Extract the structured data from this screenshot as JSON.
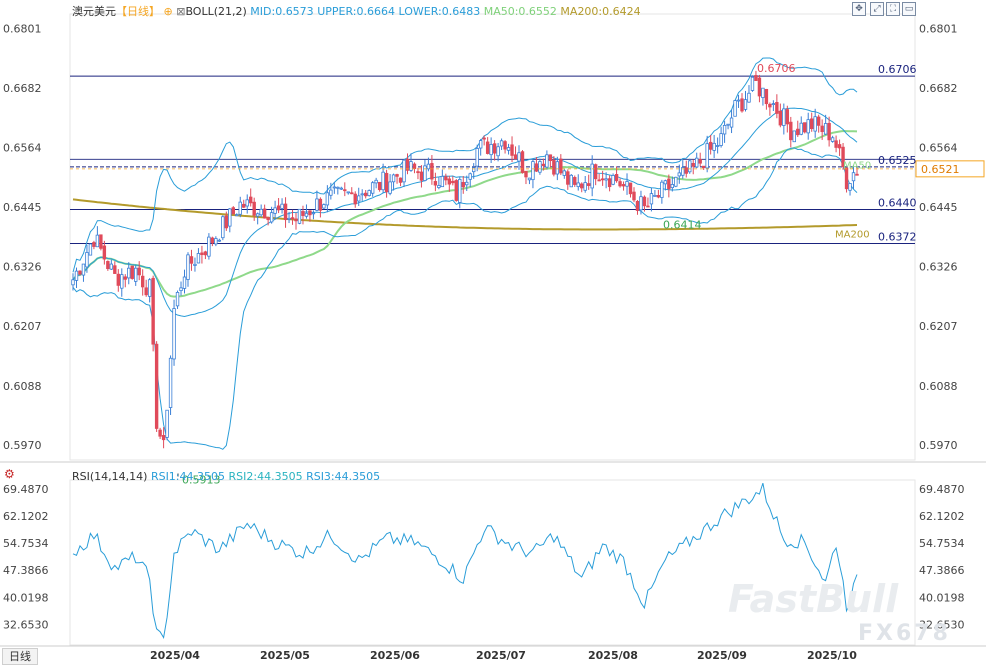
{
  "header": {
    "symbol": "澳元美元",
    "period": "【日线】",
    "indicator": "BOLL(21,2)",
    "mid": "MID:0.6573",
    "upper": "UPPER:0.6664",
    "lower": "LOWER:0.6483",
    "ma50": "MA50:0.6552",
    "ma200": "MA200:0.6424"
  },
  "rsi_header": {
    "name": "RSI(14,14,14)",
    "rsi1": "RSI1:44.3505",
    "rsi2": "RSI2:44.3505",
    "rsi3": "RSI3:44.3505"
  },
  "period_tag": "日线",
  "watermark": "FastBull",
  "watermark2": "FX678",
  "colors": {
    "up": "#3a7fd6",
    "down": "#e04a5a",
    "boll": "#2a9dd8",
    "ma50": "#8fd98a",
    "ma200": "#b39a2b",
    "hline": "#1a237e",
    "tag_price": "#f5a623",
    "low_label": "#3aa655",
    "high_label": "#e04a5a"
  },
  "chart_data": [
    {
      "type": "candlestick",
      "title": "澳元美元 日线",
      "y_ticks": [
        "0.6801",
        "0.6682",
        "0.6564",
        "0.6445",
        "0.6326",
        "0.6207",
        "0.6088",
        "0.5970"
      ],
      "ylim": [
        0.594,
        0.683
      ],
      "x_ticks": [
        "2025/04",
        "2025/05",
        "2025/06",
        "2025/07",
        "2025/08",
        "2025/09",
        "2025/10"
      ],
      "horizontal_lines": [
        {
          "label": "0.6706",
          "value": 0.6706
        },
        {
          "label": "0.6525",
          "value": 0.6525
        },
        {
          "label": "0.6440",
          "value": 0.644
        },
        {
          "label": "0.6372",
          "value": 0.6372
        }
      ],
      "current_price": "0.6521",
      "annotations": {
        "high": "0.6706",
        "low": "0.5913",
        "swing_low": "0.6414",
        "ma50_label": "MA50",
        "ma200_label": "MA200"
      },
      "anchors": [
        {
          "i": 0,
          "c": 0.63
        },
        {
          "i": 6,
          "c": 0.6385
        },
        {
          "i": 12,
          "c": 0.6305
        },
        {
          "i": 18,
          "c": 0.632
        },
        {
          "i": 22,
          "c": 0.628
        },
        {
          "i": 24,
          "c": 0.602
        },
        {
          "i": 26,
          "c": 0.596
        },
        {
          "i": 29,
          "c": 0.624
        },
        {
          "i": 32,
          "c": 0.632
        },
        {
          "i": 40,
          "c": 0.638
        },
        {
          "i": 48,
          "c": 0.645
        },
        {
          "i": 56,
          "c": 0.644
        },
        {
          "i": 64,
          "c": 0.642
        },
        {
          "i": 72,
          "c": 0.646
        },
        {
          "i": 80,
          "c": 0.647
        },
        {
          "i": 88,
          "c": 0.649
        },
        {
          "i": 96,
          "c": 0.652
        },
        {
          "i": 104,
          "c": 0.651
        },
        {
          "i": 110,
          "c": 0.647
        },
        {
          "i": 116,
          "c": 0.656
        },
        {
          "i": 124,
          "c": 0.658
        },
        {
          "i": 130,
          "c": 0.652
        },
        {
          "i": 136,
          "c": 0.655
        },
        {
          "i": 144,
          "c": 0.648
        },
        {
          "i": 150,
          "c": 0.652
        },
        {
          "i": 156,
          "c": 0.65
        },
        {
          "i": 164,
          "c": 0.644
        },
        {
          "i": 170,
          "c": 0.648
        },
        {
          "i": 178,
          "c": 0.652
        },
        {
          "i": 186,
          "c": 0.658
        },
        {
          "i": 190,
          "c": 0.664
        },
        {
          "i": 196,
          "c": 0.669
        },
        {
          "i": 201,
          "c": 0.665
        },
        {
          "i": 206,
          "c": 0.66
        },
        {
          "i": 212,
          "c": 0.661
        },
        {
          "i": 218,
          "c": 0.659
        },
        {
          "i": 222,
          "c": 0.65
        },
        {
          "i": 225,
          "c": 0.6521
        }
      ],
      "n_candles": 226
    },
    {
      "type": "line",
      "title": "RSI(14,14,14)",
      "y_ticks": [
        "69.4870",
        "62.1202",
        "54.7534",
        "47.3866",
        "40.0198",
        "32.6530"
      ],
      "ylim": [
        27.0,
        72.0
      ],
      "rsi_anchors": [
        {
          "i": 0,
          "v": 52
        },
        {
          "i": 6,
          "v": 57
        },
        {
          "i": 12,
          "v": 48
        },
        {
          "i": 18,
          "v": 51
        },
        {
          "i": 22,
          "v": 45
        },
        {
          "i": 24,
          "v": 30
        },
        {
          "i": 26,
          "v": 28
        },
        {
          "i": 29,
          "v": 52
        },
        {
          "i": 34,
          "v": 58
        },
        {
          "i": 42,
          "v": 53
        },
        {
          "i": 50,
          "v": 60
        },
        {
          "i": 58,
          "v": 55
        },
        {
          "i": 66,
          "v": 52
        },
        {
          "i": 74,
          "v": 57
        },
        {
          "i": 82,
          "v": 50
        },
        {
          "i": 90,
          "v": 56
        },
        {
          "i": 98,
          "v": 55
        },
        {
          "i": 106,
          "v": 50
        },
        {
          "i": 112,
          "v": 45
        },
        {
          "i": 118,
          "v": 59
        },
        {
          "i": 126,
          "v": 54
        },
        {
          "i": 132,
          "v": 52
        },
        {
          "i": 138,
          "v": 57
        },
        {
          "i": 146,
          "v": 45
        },
        {
          "i": 152,
          "v": 54
        },
        {
          "i": 158,
          "v": 50
        },
        {
          "i": 164,
          "v": 38
        },
        {
          "i": 170,
          "v": 50
        },
        {
          "i": 178,
          "v": 56
        },
        {
          "i": 186,
          "v": 62
        },
        {
          "i": 194,
          "v": 67
        },
        {
          "i": 198,
          "v": 69.5
        },
        {
          "i": 204,
          "v": 56
        },
        {
          "i": 210,
          "v": 55
        },
        {
          "i": 216,
          "v": 44
        },
        {
          "i": 219,
          "v": 55
        },
        {
          "i": 222,
          "v": 38
        },
        {
          "i": 225,
          "v": 44.35
        }
      ]
    }
  ]
}
